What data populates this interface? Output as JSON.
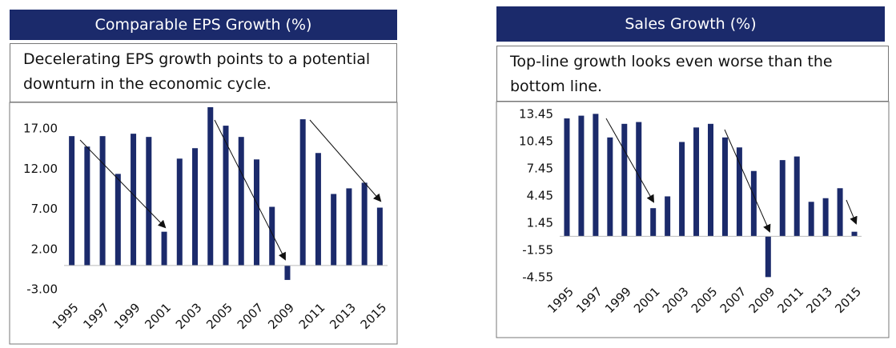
{
  "chart_data": [
    {
      "type": "bar",
      "title": "Comparable EPS Growth (%)",
      "subtitle": "Decelerating EPS growth points to a potential downturn in the economic cycle.",
      "categories": [
        "1995",
        null,
        "1997",
        null,
        "1999",
        null,
        "2001",
        null,
        "2003",
        null,
        "2005",
        null,
        "2007",
        null,
        "2009",
        null,
        "2011",
        null,
        "2013",
        null,
        "2015"
      ],
      "values": [
        16.1,
        14.8,
        16.1,
        11.4,
        16.4,
        16.0,
        4.2,
        13.3,
        14.6,
        19.7,
        17.4,
        16.0,
        13.2,
        7.3,
        -1.8,
        18.2,
        14.0,
        8.9,
        9.6,
        10.3,
        7.2
      ],
      "color": "#1b2a6b",
      "ylim": [
        -4,
        20
      ],
      "yticks": [
        {
          "value": -3,
          "label": "-3.00"
        },
        {
          "value": 2,
          "label": "2.00"
        },
        {
          "value": 7,
          "label": "7.00"
        },
        {
          "value": 12,
          "label": "12.00"
        },
        {
          "value": 17,
          "label": "17.00"
        }
      ],
      "grid": false
    },
    {
      "type": "bar",
      "title": "Sales Growth (%)",
      "subtitle": "Top-line growth looks even worse than the bottom line.",
      "categories": [
        "1995",
        null,
        "1997",
        null,
        "1999",
        null,
        "2001",
        null,
        "2003",
        null,
        "2005",
        null,
        "2007",
        null,
        "2009",
        null,
        "2011",
        null,
        "2013",
        null,
        "2015"
      ],
      "values": [
        13.0,
        13.3,
        13.5,
        10.9,
        12.4,
        12.6,
        3.1,
        4.4,
        10.4,
        12.0,
        12.4,
        10.9,
        9.8,
        7.2,
        -4.5,
        8.4,
        8.8,
        3.8,
        4.2,
        5.3,
        0.5
      ],
      "color": "#1b2a6b",
      "ylim": [
        -5,
        14.5
      ],
      "yticks": [
        -4.55,
        -1.55,
        1.45,
        4.45,
        7.45,
        10.45,
        13.45
      ],
      "grid": false
    }
  ]
}
